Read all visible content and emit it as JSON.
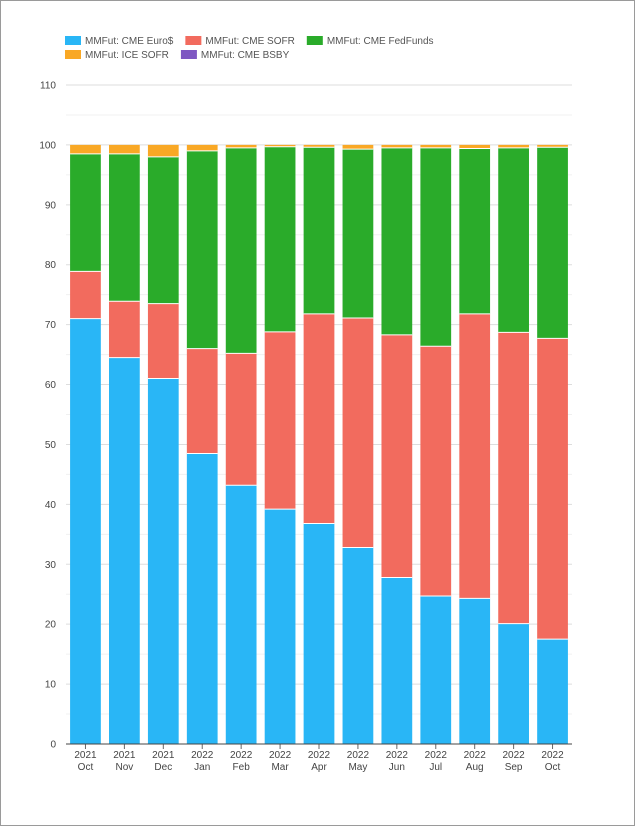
{
  "chart_data": {
    "type": "bar",
    "stacked": true,
    "categories": [
      [
        "2021",
        "Oct"
      ],
      [
        "2021",
        "Nov"
      ],
      [
        "2021",
        "Dec"
      ],
      [
        "2022",
        "Jan"
      ],
      [
        "2022",
        "Feb"
      ],
      [
        "2022",
        "Mar"
      ],
      [
        "2022",
        "Apr"
      ],
      [
        "2022",
        "May"
      ],
      [
        "2022",
        "Jun"
      ],
      [
        "2022",
        "Jul"
      ],
      [
        "2022",
        "Aug"
      ],
      [
        "2022",
        "Sep"
      ],
      [
        "2022",
        "Oct"
      ]
    ],
    "series": [
      {
        "name": "MMFut: CME Euro$",
        "color": "#29b6f6",
        "values": [
          71.0,
          64.5,
          61.0,
          48.5,
          43.2,
          39.2,
          36.8,
          32.8,
          27.8,
          24.7,
          24.3,
          20.1,
          17.5
        ]
      },
      {
        "name": "MMFut: CME SOFR",
        "color": "#f26b5e",
        "values": [
          7.9,
          9.4,
          12.5,
          17.5,
          22.0,
          29.6,
          35.0,
          38.3,
          40.5,
          41.7,
          47.5,
          48.6,
          50.2
        ]
      },
      {
        "name": "MMFut: CME FedFunds",
        "color": "#2aab2a",
        "values": [
          19.6,
          24.6,
          24.5,
          33.0,
          34.3,
          30.9,
          27.8,
          28.2,
          31.2,
          33.1,
          27.6,
          30.8,
          31.9
        ]
      },
      {
        "name": "MMFut: ICE SOFR",
        "color": "#f9a825",
        "values": [
          1.5,
          1.5,
          2.0,
          1.0,
          0.5,
          0.3,
          0.4,
          0.7,
          0.5,
          0.5,
          0.6,
          0.5,
          0.4
        ]
      },
      {
        "name": "MMFut: CME BSBY",
        "color": "#7e57c2",
        "values": [
          0,
          0,
          0,
          0,
          0,
          0,
          0,
          0,
          0,
          0,
          0,
          0,
          0
        ]
      }
    ],
    "y_ticks": [
      0,
      10,
      20,
      30,
      40,
      50,
      60,
      70,
      80,
      90,
      100,
      110
    ],
    "ylim": [
      0,
      110
    ],
    "grid": true,
    "legend_position": "top-left"
  }
}
